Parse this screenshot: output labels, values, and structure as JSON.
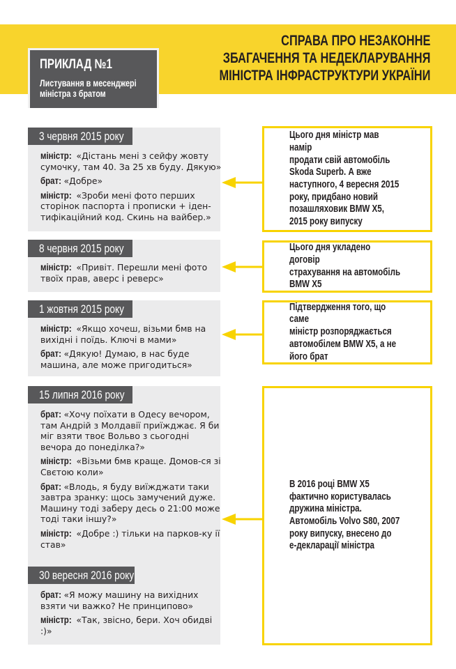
{
  "header": {
    "title_lines": [
      "СПРАВА ПРО НЕЗАКОННЕ",
      "ЗБАГАЧЕННЯ ТА НЕДЕКЛАРУВАННЯ",
      "МІНІСТРА ІНФРАСТРУКТУРИ УКРАЇНИ"
    ],
    "example_title": "ПРИКЛАД №1",
    "example_subtitle_lines": [
      "Листування в месенджері",
      "міністра з братом"
    ]
  },
  "colors": {
    "accent_yellow": "#f8d42c",
    "box_border": "#f8d300",
    "dark_gray": "#58585a",
    "panel_gray": "#ebebec"
  },
  "chats": [
    {
      "date": "3 червня 2015 року",
      "messages": [
        {
          "speaker": "міністр:",
          "text": "«Дістань мені з сейфу жовту сумочку, там 40. За 25 хв буду. Дякую»"
        },
        {
          "speaker": "брат:",
          "text": "«Добре»"
        },
        {
          "speaker": "міністр:",
          "text": "«Зроби мені фото перших сторінок паспорта і прописки + іден-тифікаційний код. Скинь на вайбер.»"
        }
      ]
    },
    {
      "date": "8 червня 2015 року",
      "messages": [
        {
          "speaker": "міністр:",
          "text": "«Привіт. Перешли мені фото твоїх прав, аверс і реверс»"
        }
      ]
    },
    {
      "date": "1 жовтня 2015 року",
      "messages": [
        {
          "speaker": "міністр:",
          "text": "«Якщо хочеш, візьми бмв на вихідні і поїдь. Ключі в мами»"
        },
        {
          "speaker": "брат:",
          "text": "«Дякую! Думаю, в нас буде машина, але може пригодиться»"
        }
      ]
    },
    {
      "date": "15 липня 2016 року",
      "messages": [
        {
          "speaker": "брат:",
          "text": "«Хочу поїхати в Одесу вечором, там Андрій з Молдавії приїжджає. Я би міг взяти твоє Вольво з сьогодні вечора до понеділка?»"
        },
        {
          "speaker": "міністр:",
          "text": " «Візьми бмв краще. Домов-ся зі Свєтою коли»"
        },
        {
          "speaker": "брат:",
          "text": "«Влодь, я буду виїжджати таки завтра зранку: щось замучений дуже. Машину тоді заберу десь о 21:00 може тоді таки іншу?»"
        },
        {
          "speaker": "міністр:",
          "text": " «Добре :) тільки на парков-ку ії став»"
        }
      ]
    },
    {
      "date": "30 вересня 2016 року",
      "messages": [
        {
          "speaker": "брат:",
          "text": "«Я можу машину на вихідних взяти чи важко? Не принципово»"
        },
        {
          "speaker": "міністр:",
          "text": "«Так, звісно, бери. Хоч обидві :)»"
        }
      ]
    }
  ],
  "notes": [
    "Цього дня міністр мав намір\nпродати свій автомобіль\nSkoda Superb. А вже\nнаступного, 4 вересня 2015\nроку, придбано новий\nпозашляховик BMW X5,\n2015 року випуску",
    "Цього дня укладено договір\nстрахування на автомобіль\nBMW X5",
    "Підтвердження того, що саме\nміністр  розпоряджається\nавтомобілем BMW X5, а не\nйого брат",
    "В 2016 році BMW X5\nфактично користувалась\nдружина міністра.\nАвтомобіль Volvo  S80, 2007\nроку випуску, внесено до\nе-декларації міністра"
  ]
}
